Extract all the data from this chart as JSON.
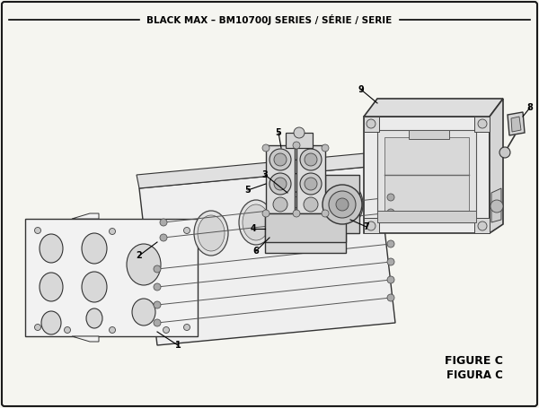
{
  "title": "BLACK MAX – BM10700J SERIES / SÉRIE / SERIE",
  "bg_color": "#f5f5f0",
  "border_color": "#1a1a1a",
  "figure_label": "FIGURE C",
  "figure_label2": "FIGURA C"
}
